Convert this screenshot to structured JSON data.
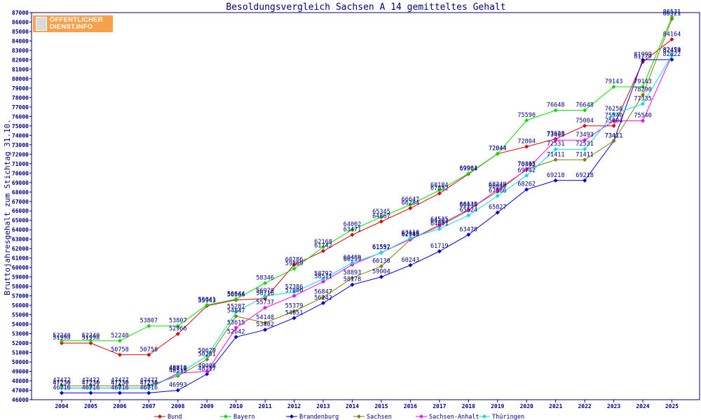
{
  "logo": {
    "line1": "ÖFFENTLICHER",
    "line2": "DIENST.INFO"
  },
  "chart_data": {
    "type": "line",
    "title": "Besoldungsvergleich Sachsen A 14 gemitteltes Gehalt",
    "ylabel": "Bruttojahresgehalt zum Stichtag 31.10.",
    "xlabel": "",
    "ylim": [
      46000,
      87000
    ],
    "ytick_step": 1000,
    "grid": false,
    "legend_position": "bottom",
    "x": [
      "2004",
      "2005",
      "2006",
      "2007",
      "2008",
      "2009",
      "2010",
      "2011",
      "2012",
      "2013",
      "2014",
      "2015",
      "2016",
      "2017",
      "2018",
      "2019",
      "2020",
      "2021",
      "2022",
      "2023",
      "2024",
      "2025"
    ],
    "series": [
      {
        "name": "Bund",
        "color": "#e00000",
        "values": [
          51998,
          51998,
          50758,
          50758,
          52966,
          55943,
          56566,
          56716,
          60286,
          61742,
          63471,
          64867,
          66284,
          67852,
          69904,
          72044,
          72804,
          73628,
          75004,
          75004,
          81779,
          84164
        ]
      },
      {
        "name": "Bayern",
        "color": "#00e000",
        "values": [
          52240,
          52240,
          52240,
          53807,
          53807,
          56041,
          56644,
          58346,
          59869,
          62168,
          64002,
          65345,
          66647,
          68184,
          69961,
          72044,
          75590,
          76648,
          76648,
          79143,
          79143,
          86531
        ]
      },
      {
        "name": "Brandenburg",
        "color": "#0000d0",
        "values": [
          46716,
          46716,
          46716,
          46716,
          46993,
          48717,
          52642,
          53402,
          54651,
          56242,
          58178,
          59004,
          60243,
          61719,
          63478,
          65827,
          68262,
          69218,
          69218,
          73411,
          81999,
          82022
        ]
      },
      {
        "name": "Sachsen",
        "color": "#808000",
        "values": [
          47477,
          47477,
          47477,
          47477,
          48519,
          50261,
          54847,
          54148,
          55379,
          56847,
          58893,
          60130,
          62948,
          64525,
          66130,
          68040,
          70405,
          71411,
          71411,
          73411,
          78290,
          86321
        ]
      },
      {
        "name": "Sachsen-Anhalt",
        "color": "#ff00ff",
        "values": [
          47230,
          47230,
          47230,
          47230,
          48810,
          49006,
          53615,
          55737,
          57000,
          58511,
          60299,
          61592,
          62985,
          64391,
          66040,
          68249,
          70342,
          73493,
          73493,
          75540,
          75540,
          82479
        ]
      },
      {
        "name": "Thüringen",
        "color": "#00e0e0",
        "values": [
          47230,
          47230,
          47230,
          47230,
          48710,
          50629,
          55287,
          56970,
          57386,
          58792,
          60489,
          61557,
          63118,
          64091,
          65524,
          67586,
          69742,
          72531,
          72531,
          76256,
          77335,
          82454
        ]
      }
    ]
  }
}
